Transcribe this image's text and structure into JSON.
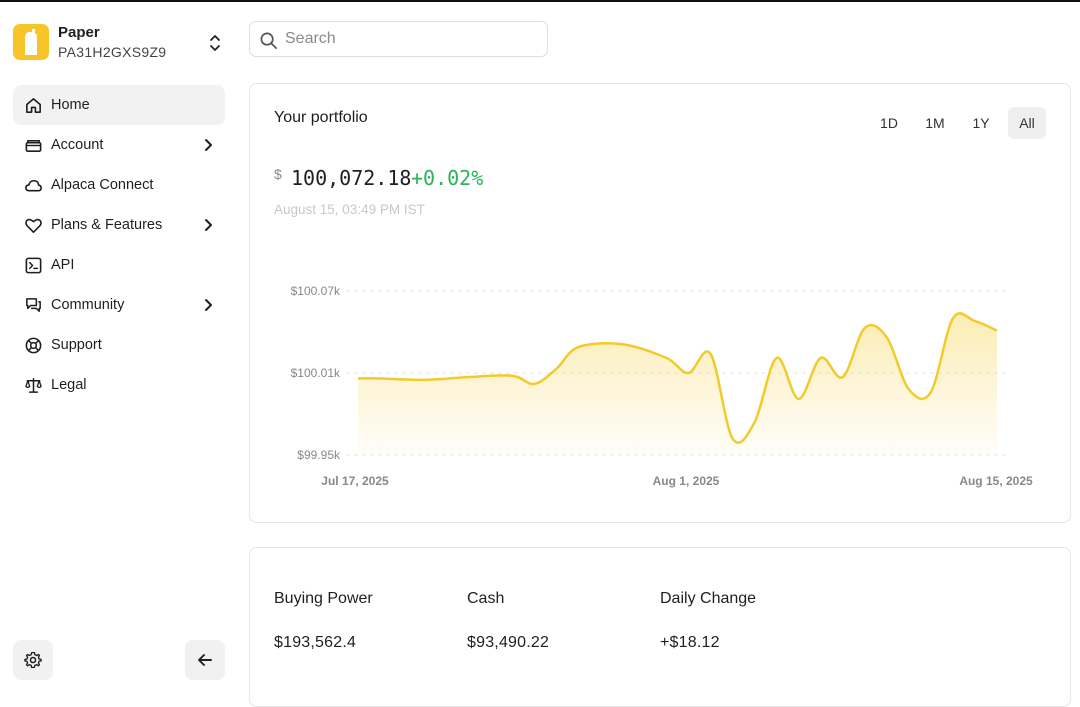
{
  "account": {
    "name": "Paper",
    "id": "PA31H2GXS9Z9"
  },
  "nav": [
    {
      "label": "Home",
      "icon": "home-icon",
      "active": true,
      "chevron": false
    },
    {
      "label": "Account",
      "icon": "account-icon",
      "active": false,
      "chevron": true
    },
    {
      "label": "Alpaca Connect",
      "icon": "cloud-icon",
      "active": false,
      "chevron": false
    },
    {
      "label": "Plans & Features",
      "icon": "heart-icon",
      "active": false,
      "chevron": true
    },
    {
      "label": "API",
      "icon": "terminal-icon",
      "active": false,
      "chevron": false
    },
    {
      "label": "Community",
      "icon": "chat-icon",
      "active": false,
      "chevron": true
    },
    {
      "label": "Support",
      "icon": "lifebuoy-icon",
      "active": false,
      "chevron": false
    },
    {
      "label": "Legal",
      "icon": "scales-icon",
      "active": false,
      "chevron": false
    }
  ],
  "search": {
    "placeholder": "Search"
  },
  "portfolio": {
    "title": "Your portfolio",
    "currency": "$",
    "value": "100,072.18",
    "change_pct": "+0.02%",
    "timestamp": "August 15, 03:49 PM IST",
    "ranges": [
      "1D",
      "1M",
      "1Y",
      "All"
    ],
    "selected_range": "All"
  },
  "chart_data": {
    "type": "area",
    "title": "",
    "xlabel": "",
    "ylabel": "",
    "x_ticks": [
      "Jul 17, 2025",
      "Aug 1, 2025",
      "Aug 15, 2025"
    ],
    "y_ticks": [
      "$100.07k",
      "$100.01k",
      "$99.95k"
    ],
    "ylim": [
      99950,
      100070
    ],
    "grid": true,
    "color": "#f2cb2b",
    "x": [
      "2025-07-17",
      "2025-07-18",
      "2025-07-20",
      "2025-07-22",
      "2025-07-24",
      "2025-07-25",
      "2025-07-26",
      "2025-07-27",
      "2025-07-29",
      "2025-07-31",
      "2025-08-01",
      "2025-08-02",
      "2025-08-03",
      "2025-08-04",
      "2025-08-05",
      "2025-08-06",
      "2025-08-07",
      "2025-08-08",
      "2025-08-09",
      "2025-08-10",
      "2025-08-11",
      "2025-08-12",
      "2025-08-13",
      "2025-08-14",
      "2025-08-15"
    ],
    "y": [
      100006,
      100006,
      100005,
      100007,
      100008,
      100002,
      100013,
      100029,
      100031,
      100021,
      100010,
      100024,
      99962,
      99974,
      100021,
      99991,
      100021,
      100007,
      100043,
      100036,
      99998,
      99996,
      100050,
      100048,
      100041
    ]
  },
  "stats": [
    {
      "label": "Buying Power",
      "value": "$193,562.4"
    },
    {
      "label": "Cash",
      "value": "$93,490.22"
    },
    {
      "label": "Daily Change",
      "value": "+$18.12"
    }
  ]
}
